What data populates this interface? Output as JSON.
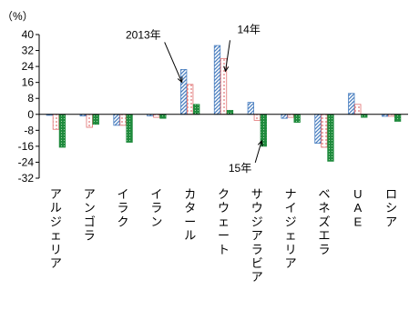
{
  "chart_data": {
    "type": "bar",
    "unit_label": "（%）",
    "categories": [
      "アルジェリア",
      "アンゴラ",
      "イラク",
      "イラン",
      "カタール",
      "クウェート",
      "サウジアラビア",
      "ナイジェリア",
      "ベネズエラ",
      "UAE",
      "ロシア"
    ],
    "series": [
      {
        "values": [
          -0.5,
          -0.8,
          -5.5,
          -0.8,
          22.5,
          34.5,
          6.0,
          -2.0,
          -14.5,
          10.5,
          -1.0
        ],
        "color": "#4a7fc0",
        "pattern": "diagonal-hatch"
      },
      {
        "values": [
          -7.5,
          -6.5,
          -5.5,
          -1.5,
          15.0,
          28.0,
          -3.0,
          -1.5,
          -16.5,
          5.0,
          -1.0
        ],
        "color": "#e07070",
        "pattern": "dotted"
      },
      {
        "values": [
          -16.5,
          -5.0,
          -14.0,
          -2.0,
          5.0,
          2.0,
          -16.0,
          -4.0,
          -23.5,
          -1.5,
          -3.5
        ],
        "color": "#1e8a3c",
        "pattern": "dotted-solid"
      }
    ],
    "yticks": [
      40,
      32,
      24,
      16,
      8,
      0,
      -8,
      -16,
      -24,
      -32
    ],
    "ylim": [
      -32,
      40
    ],
    "annotations": [
      {
        "text": "2013年",
        "series": 0,
        "category": 4
      },
      {
        "text": "14年",
        "series": 1,
        "category": 5
      },
      {
        "text": "15年",
        "series": 2,
        "category": 6
      }
    ],
    "grid": false,
    "legend": "none"
  }
}
